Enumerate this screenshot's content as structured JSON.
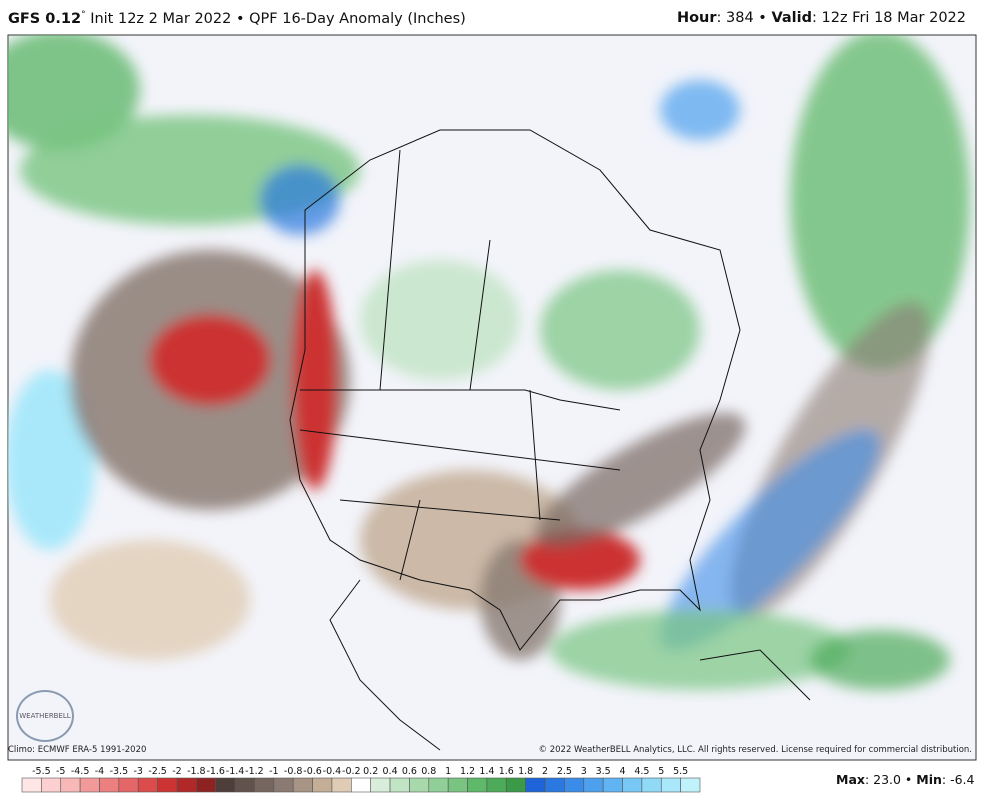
{
  "header": {
    "model": "GFS 0.12",
    "degree": "°",
    "run": "Init 12z 2 Mar 2022 • QPF 16-Day Anomaly (Inches)",
    "hour_label": "Hour",
    "hour": ": 384 • ",
    "valid_label": "Valid",
    "valid": ": 12z Fri 18 Mar 2022"
  },
  "footer": {
    "climo": "Climo: ECMWF ERA-5 1991-2020",
    "copyright": "© 2022 WeatherBELL Analytics, LLC. All rights reserved. License required for commercial distribution.",
    "logo": "WEATHERBELL"
  },
  "colorbar": {
    "labels": [
      "-5.5",
      "-5",
      "-4.5",
      "-4",
      "-3.5",
      "-3",
      "-2.5",
      "-2",
      "-1.8",
      "-1.6",
      "-1.4",
      "-1.2",
      "-1",
      "-0.8",
      "-0.6",
      "-0.4",
      "-0.2",
      "0.2",
      "0.4",
      "0.6",
      "0.8",
      "1",
      "1.2",
      "1.4",
      "1.6",
      "1.8",
      "2",
      "2.5",
      "3",
      "3.5",
      "4",
      "4.5",
      "5",
      "5.5"
    ],
    "colors": [
      "#ffe6e6",
      "#fcd0d0",
      "#f8b8b8",
      "#f29a9a",
      "#ec8080",
      "#e46666",
      "#dc4c4c",
      "#cc3333",
      "#b02828",
      "#8e2222",
      "#4e3e3a",
      "#62524c",
      "#766660",
      "#8a7a72",
      "#a89484",
      "#c4ae98",
      "#e0ccb4",
      "#ffffff",
      "#d8eedb",
      "#c0e4c4",
      "#a8d9ad",
      "#90cf97",
      "#78c480",
      "#60b86a",
      "#4caa58",
      "#3a9a48",
      "#1e64d8",
      "#2a78e0",
      "#3a8ce8",
      "#4ca0ee",
      "#60b4f2",
      "#78c8f6",
      "#90daf8",
      "#a8e8fa",
      "#c0f2fc"
    ]
  },
  "stats": {
    "max_label": "Max",
    "max": ": 23.0 • ",
    "min_label": "Min",
    "min": ": -6.4"
  }
}
